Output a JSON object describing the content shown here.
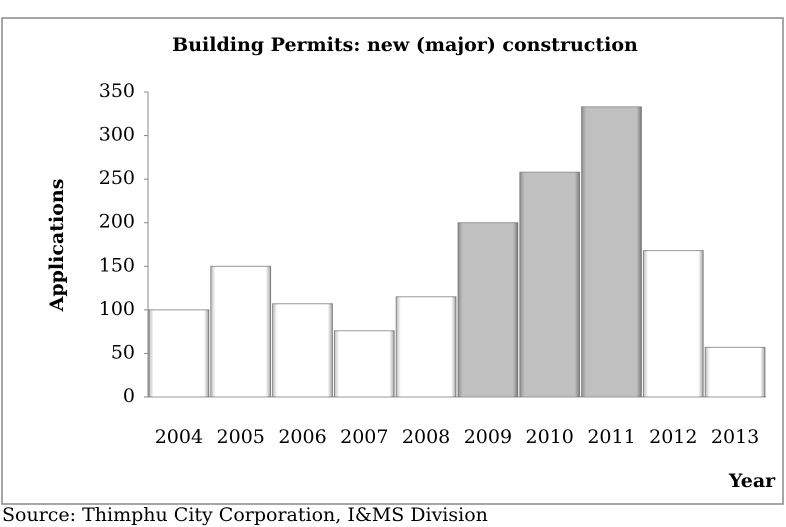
{
  "chart_data": {
    "type": "bar",
    "title": "Building Permits: new (major) construction",
    "y_label": "Applications",
    "x_label": "Year",
    "source": "Source: Thimphu City Corporation, I&MS Division",
    "categories": [
      "2004",
      "2005",
      "2006",
      "2007",
      "2008",
      "2009",
      "2010",
      "2011",
      "2012",
      "2013"
    ],
    "values": [
      100,
      150,
      107,
      76,
      115,
      200,
      258,
      333,
      168,
      57
    ],
    "colors": [
      "#ffffff",
      "#ffffff",
      "#ffffff",
      "#ffffff",
      "#ffffff",
      "#c0c0c0",
      "#c0c0c0",
      "#c0c0c0",
      "#ffffff",
      "#ffffff"
    ],
    "ylim": [
      0,
      350
    ],
    "yticks": [
      0,
      50,
      100,
      150,
      200,
      250,
      300,
      350
    ],
    "grid": false
  }
}
